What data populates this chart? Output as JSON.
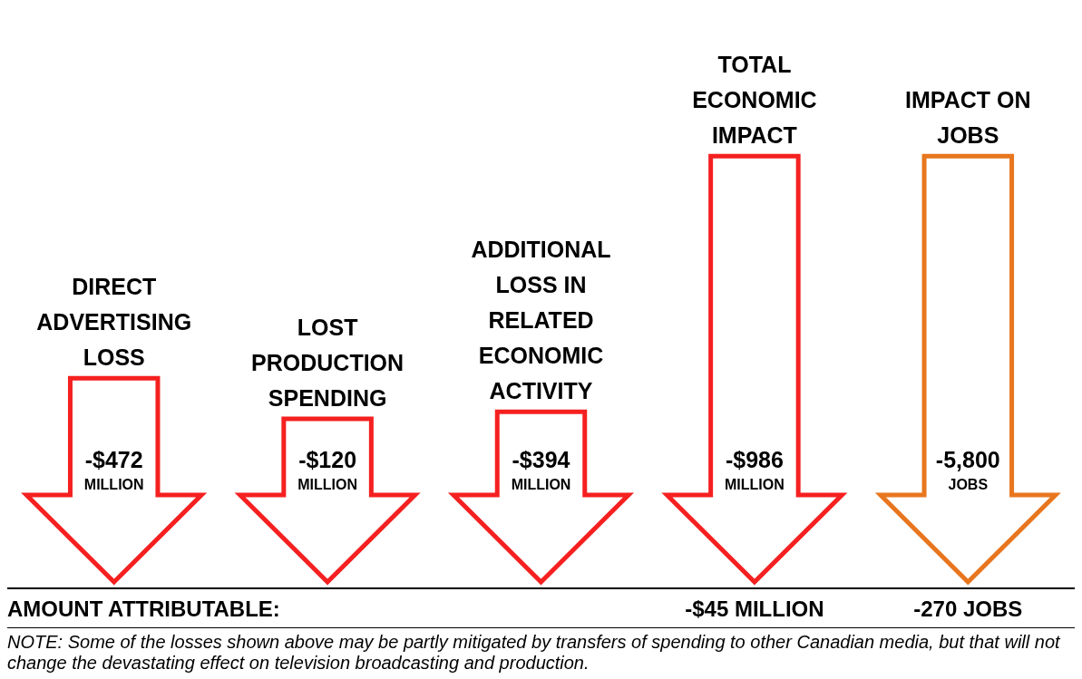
{
  "chart_data": {
    "type": "other",
    "categories": [
      "DIRECT ADVERTISING LOSS",
      "LOST PRODUCTION SPENDING",
      "ADDITIONAL LOSS IN RELATED ECONOMIC ACTIVITY",
      "TOTAL ECONOMIC IMPACT",
      "IMPACT ON JOBS"
    ],
    "series": [
      {
        "color": "#f52020",
        "values": [
          -472,
          -120,
          -394,
          -986,
          null
        ],
        "value_labels": [
          "-$472 MILLION",
          "-$120 MILLION",
          "-$394 MILLION",
          "-$986 MILLION",
          null
        ]
      },
      {
        "color": "#e8761e",
        "axis": "y2",
        "values": [
          null,
          null,
          null,
          null,
          -5800
        ],
        "value_labels": [
          null,
          null,
          null,
          null,
          "-5,800 JOBS"
        ]
      }
    ],
    "legend": false,
    "annotations": [
      "AMOUNT ATTRIBUTABLE:",
      {
        "text": "-$45 MILLION",
        "x": "TOTAL ECONOMIC IMPACT"
      },
      {
        "text": "-270 JOBS",
        "x": "IMPACT ON JOBS"
      },
      "NOTE:  Some of the losses shown above may be partly mitigated by transfers of spending to other Canadian media, but that will not change the devastating effect on television broadcasting and production."
    ]
  }
}
